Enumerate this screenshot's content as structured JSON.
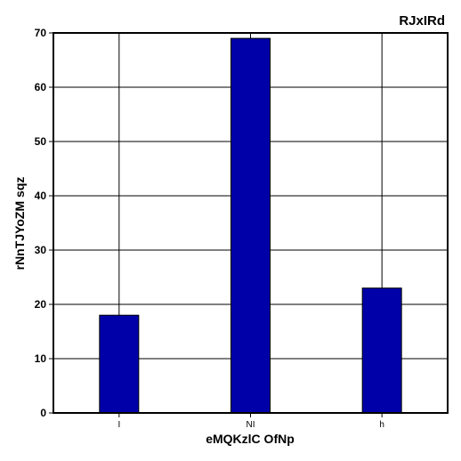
{
  "chart_data": {
    "type": "bar",
    "title": "RJxIRd",
    "xlabel": "eMQKzlC OfNp",
    "ylabel": "rNnTJYoZM sqz",
    "categories": [
      "I",
      "NI",
      "h"
    ],
    "values": [
      18,
      69,
      23
    ],
    "ylim": [
      0,
      70
    ],
    "yticks": [
      "0",
      "10",
      "20",
      "30",
      "40",
      "50",
      "60",
      "70"
    ],
    "grid": true,
    "bar_color": "#0000a8"
  }
}
